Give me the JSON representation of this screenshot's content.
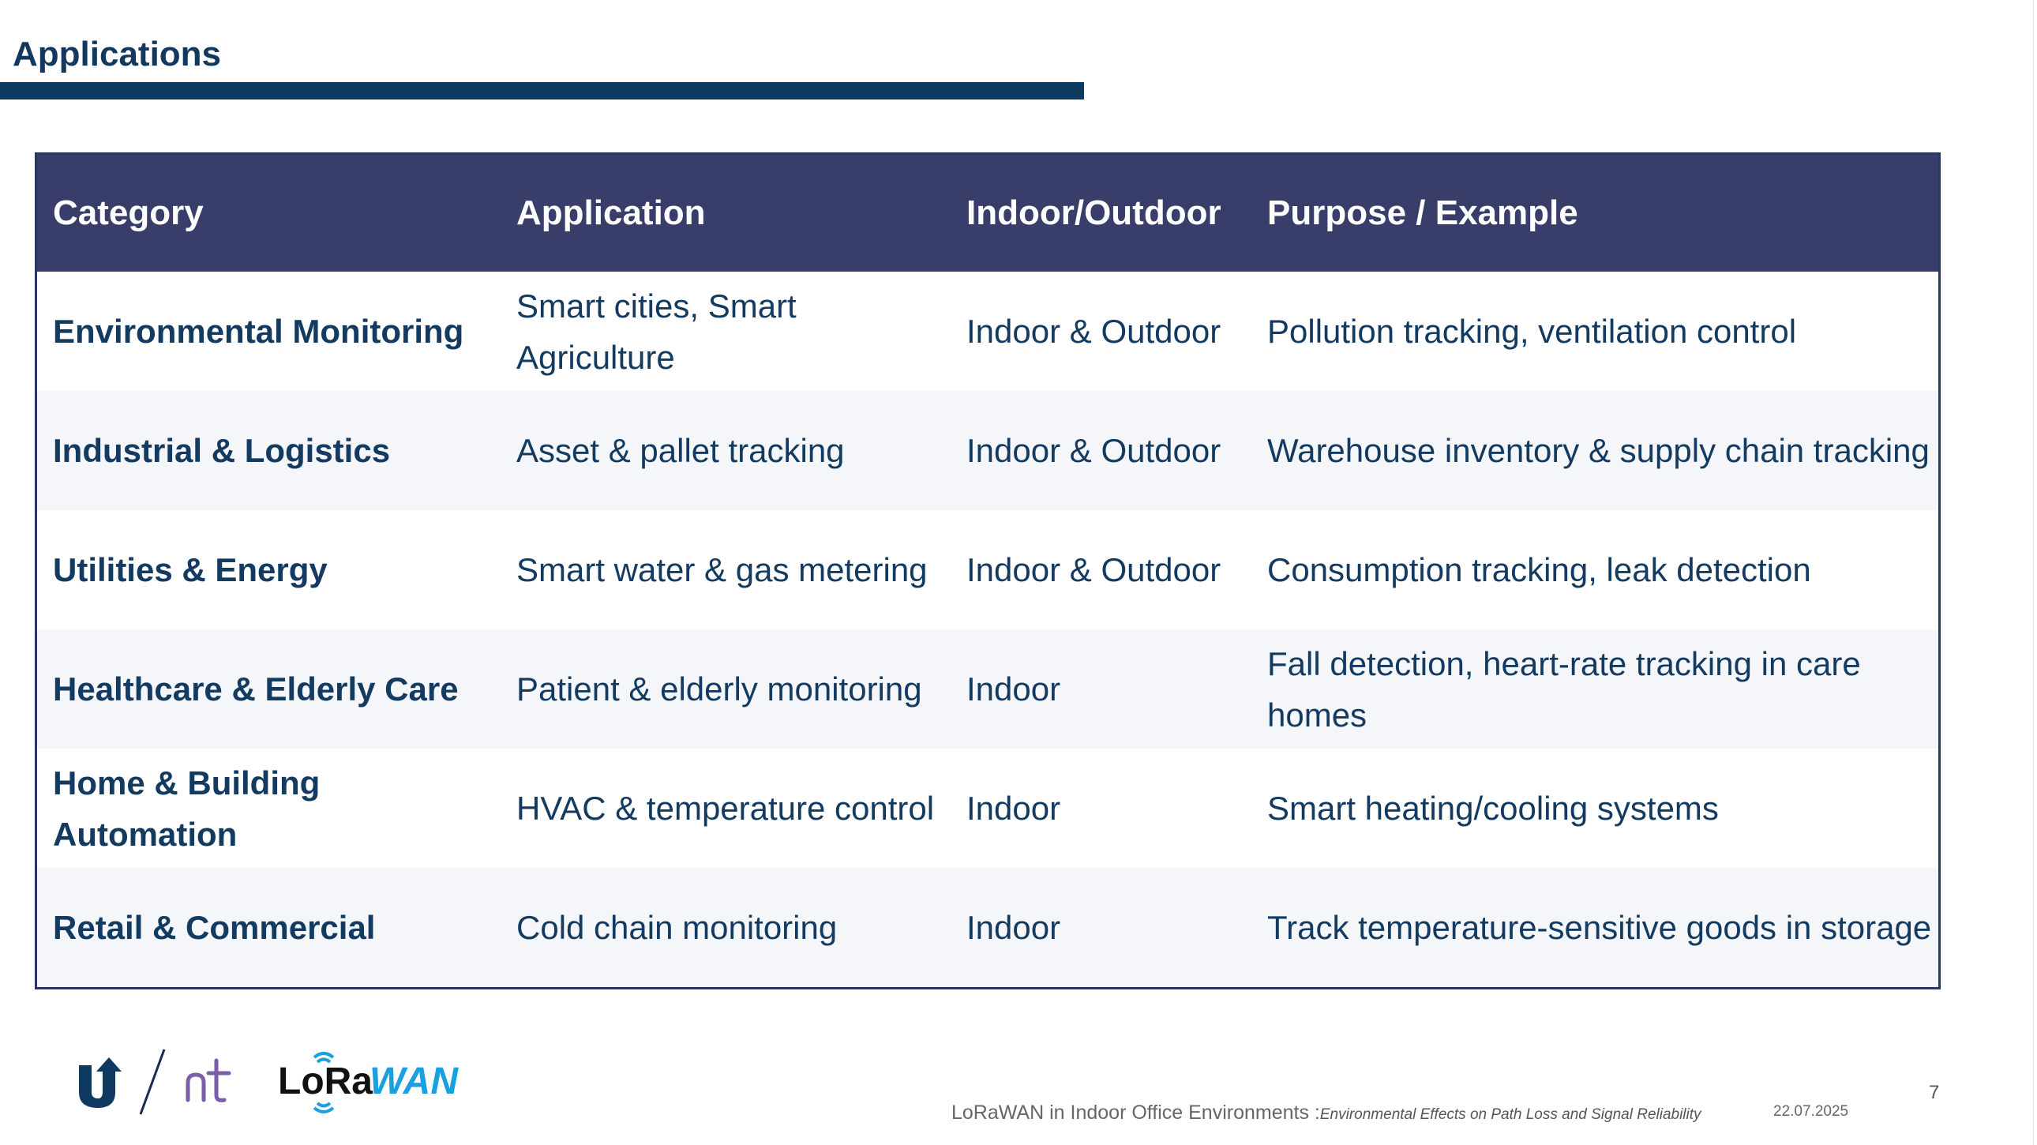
{
  "page": {
    "title": "Applications"
  },
  "table": {
    "headers": [
      "Category",
      "Application",
      "Indoor/Outdoor",
      "Purpose / Example"
    ],
    "rows": [
      [
        "Environmental Monitoring",
        "Smart cities, Smart Agriculture",
        "Indoor & Outdoor",
        "Pollution tracking, ventilation control"
      ],
      [
        "Industrial & Logistics",
        "Asset & pallet tracking",
        "Indoor & Outdoor",
        "Warehouse inventory & supply chain tracking"
      ],
      [
        "Utilities & Energy",
        "Smart water & gas metering",
        "Indoor & Outdoor",
        "Consumption tracking, leak detection"
      ],
      [
        "Healthcare & Elderly Care",
        "Patient & elderly monitoring",
        "Indoor",
        "Fall detection, heart-rate tracking in care homes"
      ],
      [
        "Home & Building Automation",
        "HVAC & temperature control",
        "Indoor",
        "Smart heating/cooling systems"
      ],
      [
        "Retail & Commercial",
        "Cold chain monitoring",
        "Indoor",
        "Track temperature-sensitive goods in storage"
      ]
    ]
  },
  "logos": {
    "lorawan_text": "LoRaWAN",
    "icons": [
      "university-logo-icon",
      "nt-logo-icon",
      "lorawan-logo-icon"
    ]
  },
  "footer": {
    "presentation_title": "LoRaWAN in Indoor Office Environments :",
    "subtitle": "Environmental Effects on Path Loss and Signal Reliability",
    "date": "22.07.2025",
    "page_number": "7"
  },
  "colors": {
    "header_bg": "#383e69",
    "title_bar": "#0f3a5f",
    "text": "#133a60",
    "lorawan_blue": "#1aa0e0"
  }
}
